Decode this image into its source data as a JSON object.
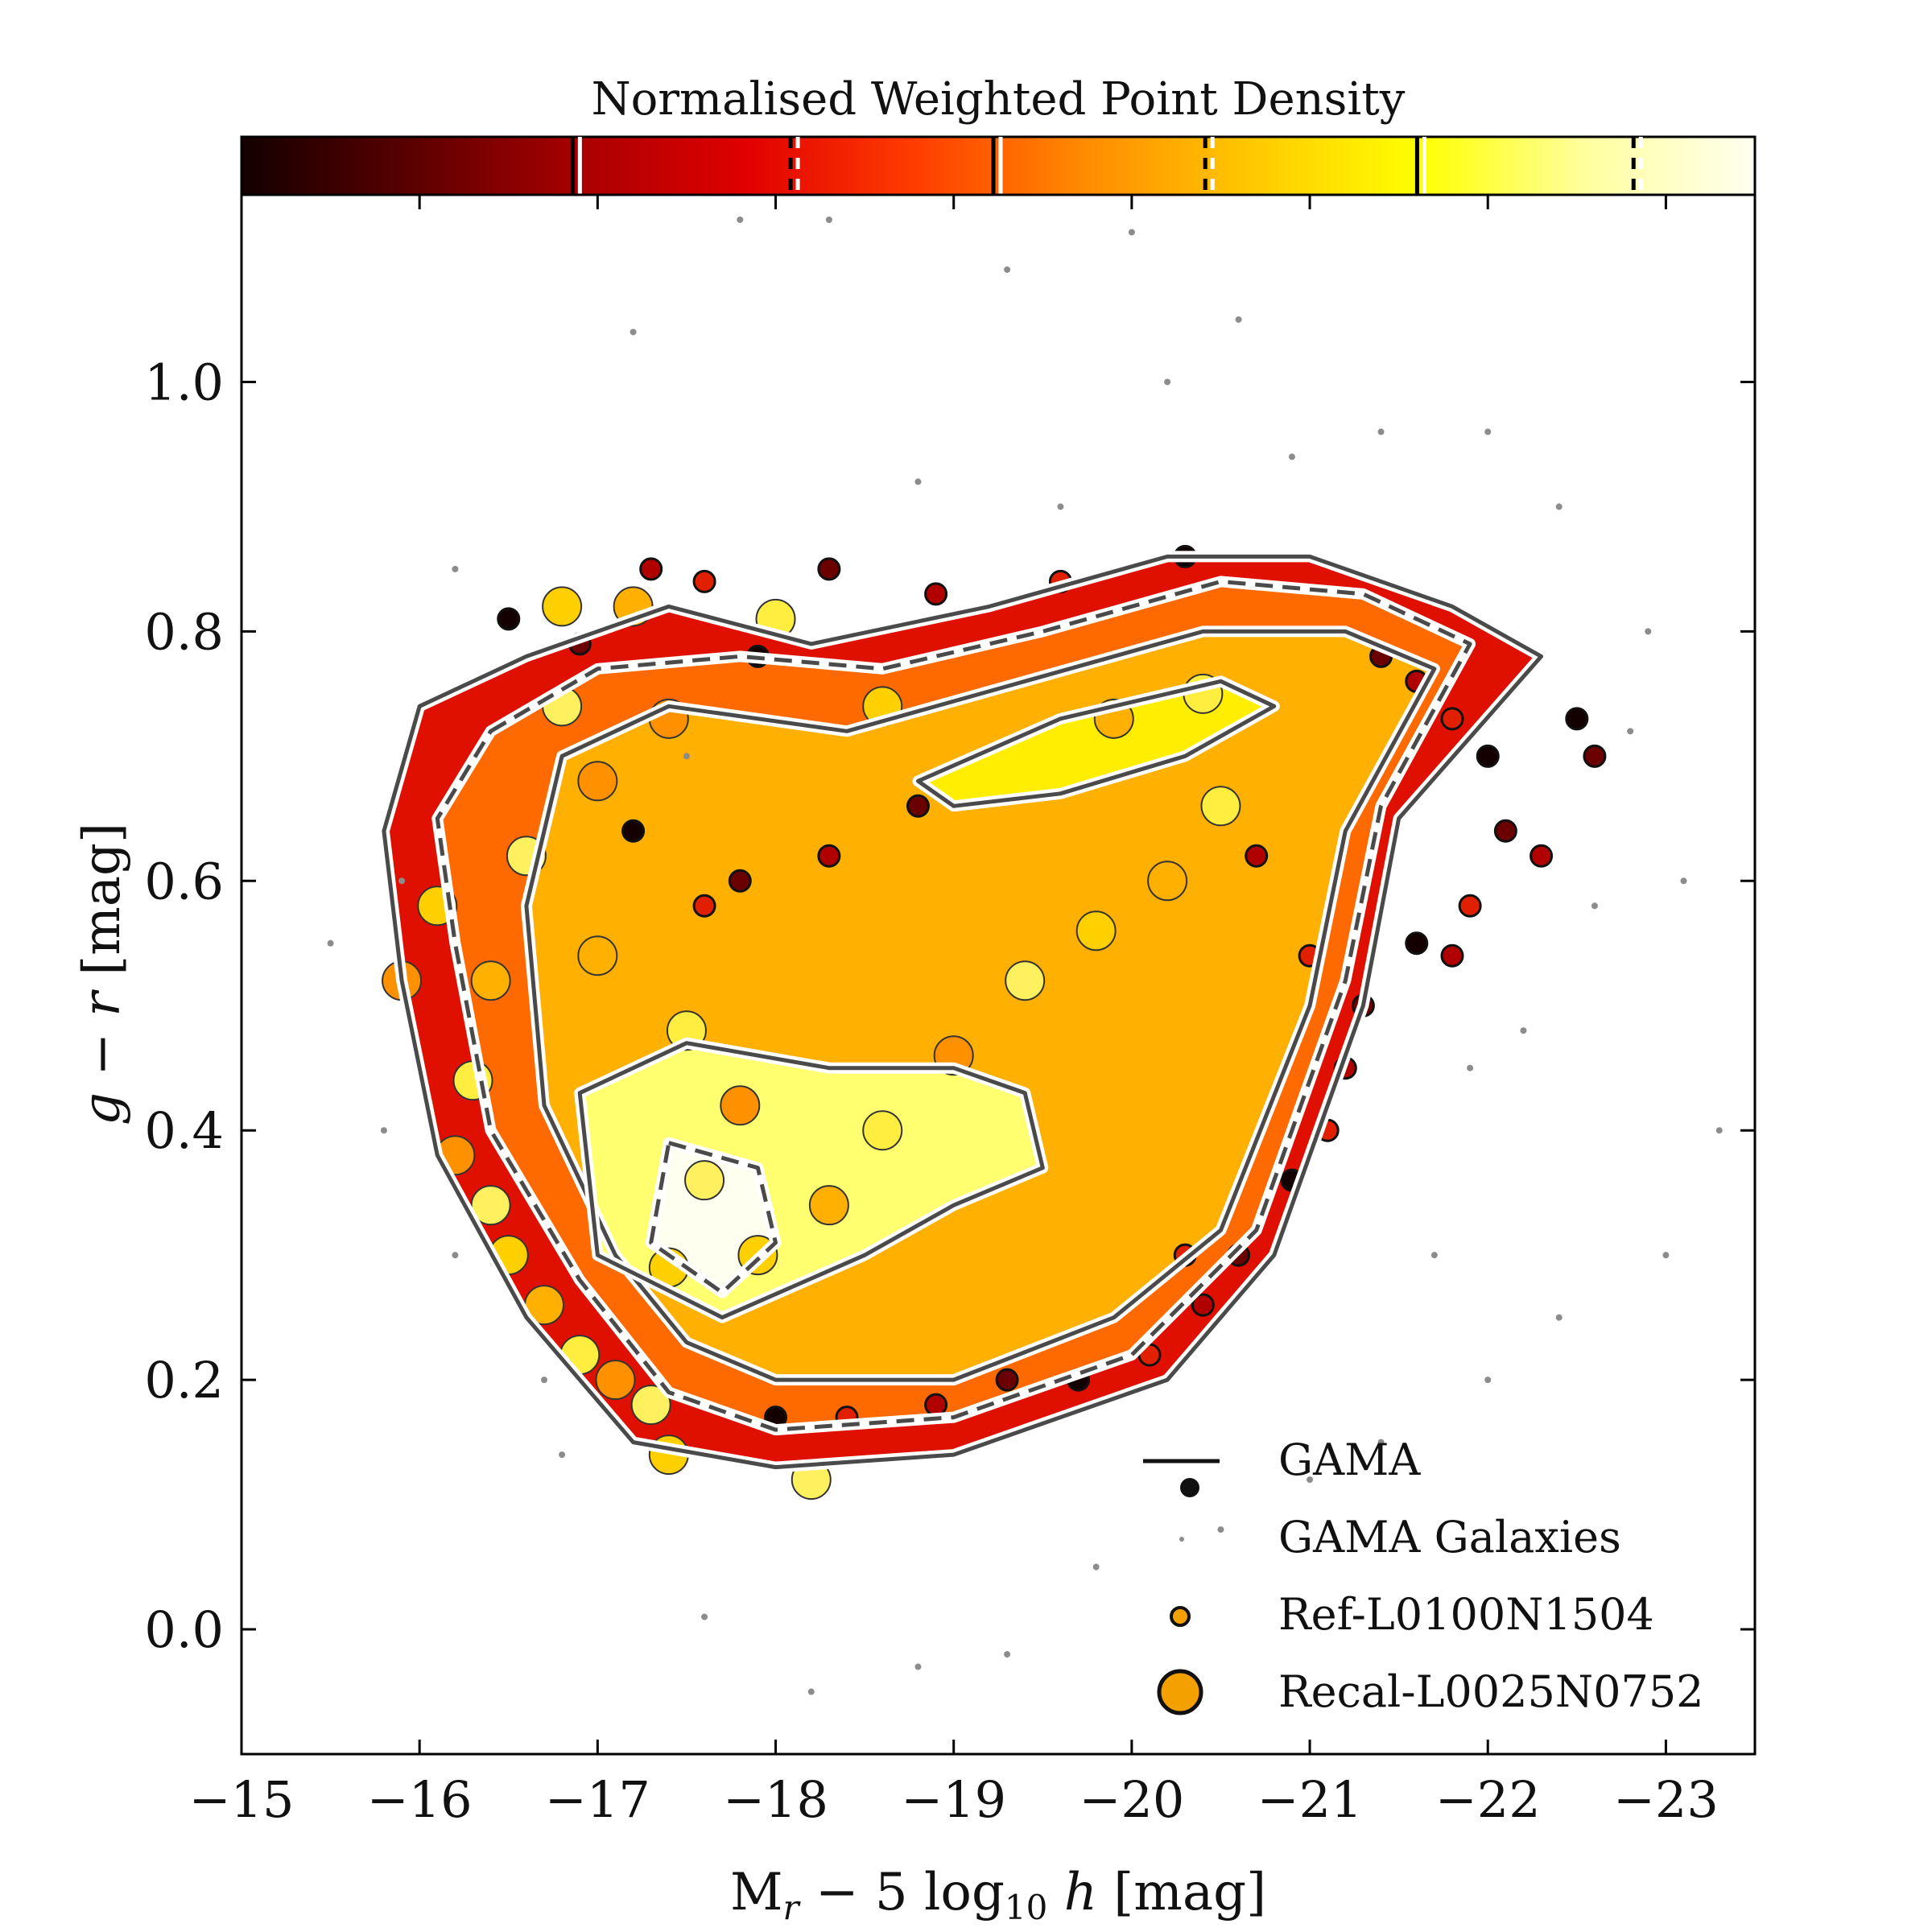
{
  "chart_data": {
    "type": "scatter",
    "title": "Normalised Weighted Point Density",
    "xlabel": "M_r − 5 log10 h [mag]",
    "xlabel_parts": {
      "main": "M",
      "sub_r": "r",
      "mid": " − 5 log",
      "sub_10": "10",
      "h": " h",
      "unit": " [mag]"
    },
    "ylabel": "g − r [mag]",
    "ylabel_parts": {
      "g": "g",
      "minus": " − ",
      "r": "r",
      "unit": " [mag]"
    },
    "xlim": [
      -15,
      -23.5
    ],
    "ylim": [
      -0.1,
      1.15
    ],
    "x_ticks": [
      -15,
      -16,
      -17,
      -18,
      -19,
      -20,
      -21,
      -22,
      -23
    ],
    "x_tick_labels": [
      "−15",
      "−16",
      "−17",
      "−18",
      "−19",
      "−20",
      "−21",
      "−22",
      "−23"
    ],
    "y_ticks": [
      0.0,
      0.2,
      0.4,
      0.6,
      0.8,
      1.0
    ],
    "y_tick_labels": [
      "0.0",
      "0.2",
      "0.4",
      "0.6",
      "0.8",
      "1.0"
    ],
    "colorbar": {
      "colormap": "hot",
      "colors": [
        "#140000",
        "#5a0000",
        "#a80000",
        "#e00000",
        "#ff3c00",
        "#ff8a00",
        "#ffc800",
        "#ffff00",
        "#ffffa0",
        "#fffff0"
      ],
      "segment_boundaries": [
        0.222,
        0.366,
        0.5,
        0.64,
        0.78,
        0.923
      ]
    },
    "series": [
      {
        "name": "GAMA",
        "kind": "contours",
        "color": "#4a4a4a",
        "contours": [
          {
            "style": "solid",
            "points": [
              [
                -16.0,
                0.74
              ],
              [
                -16.6,
                0.78
              ],
              [
                -17.4,
                0.82
              ],
              [
                -18.2,
                0.79
              ],
              [
                -19.2,
                0.82
              ],
              [
                -20.2,
                0.86
              ],
              [
                -21.0,
                0.86
              ],
              [
                -21.8,
                0.82
              ],
              [
                -22.3,
                0.78
              ],
              [
                -21.5,
                0.65
              ],
              [
                -21.3,
                0.5
              ],
              [
                -20.8,
                0.3
              ],
              [
                -20.2,
                0.2
              ],
              [
                -19.0,
                0.14
              ],
              [
                -18.0,
                0.13
              ],
              [
                -17.2,
                0.15
              ],
              [
                -16.6,
                0.25
              ],
              [
                -16.1,
                0.38
              ],
              [
                -15.9,
                0.52
              ],
              [
                -15.8,
                0.64
              ]
            ]
          },
          {
            "style": "dashed",
            "points": [
              [
                -16.4,
                0.72
              ],
              [
                -17.0,
                0.77
              ],
              [
                -17.8,
                0.78
              ],
              [
                -18.6,
                0.77
              ],
              [
                -19.5,
                0.8
              ],
              [
                -20.5,
                0.84
              ],
              [
                -21.3,
                0.83
              ],
              [
                -21.9,
                0.79
              ],
              [
                -21.4,
                0.66
              ],
              [
                -21.2,
                0.52
              ],
              [
                -20.7,
                0.32
              ],
              [
                -20.0,
                0.22
              ],
              [
                -19.0,
                0.17
              ],
              [
                -18.0,
                0.16
              ],
              [
                -17.4,
                0.19
              ],
              [
                -16.9,
                0.28
              ],
              [
                -16.4,
                0.4
              ],
              [
                -16.2,
                0.55
              ],
              [
                -16.1,
                0.65
              ]
            ]
          },
          {
            "style": "solid",
            "points": [
              [
                -16.8,
                0.7
              ],
              [
                -17.4,
                0.74
              ],
              [
                -18.4,
                0.72
              ],
              [
                -19.4,
                0.76
              ],
              [
                -20.4,
                0.8
              ],
              [
                -21.2,
                0.8
              ],
              [
                -21.7,
                0.77
              ],
              [
                -21.2,
                0.64
              ],
              [
                -21.0,
                0.5
              ],
              [
                -20.5,
                0.32
              ],
              [
                -19.9,
                0.25
              ],
              [
                -19.0,
                0.2
              ],
              [
                -18.0,
                0.2
              ],
              [
                -17.5,
                0.23
              ],
              [
                -17.1,
                0.3
              ],
              [
                -16.7,
                0.42
              ],
              [
                -16.6,
                0.58
              ]
            ]
          },
          {
            "style": "solid",
            "points": [
              [
                -18.8,
                0.68
              ],
              [
                -19.6,
                0.73
              ],
              [
                -20.5,
                0.76
              ],
              [
                -20.8,
                0.74
              ],
              [
                -20.3,
                0.7
              ],
              [
                -19.6,
                0.67
              ],
              [
                -19.0,
                0.66
              ]
            ]
          },
          {
            "style": "solid",
            "points": [
              [
                -16.9,
                0.43
              ],
              [
                -17.5,
                0.47
              ],
              [
                -18.3,
                0.45
              ],
              [
                -19.0,
                0.45
              ],
              [
                -19.4,
                0.43
              ],
              [
                -19.5,
                0.37
              ],
              [
                -19.0,
                0.34
              ],
              [
                -18.5,
                0.3
              ],
              [
                -17.7,
                0.25
              ],
              [
                -17.0,
                0.3
              ]
            ]
          },
          {
            "style": "dashed",
            "points": [
              [
                -17.4,
                0.39
              ],
              [
                -17.9,
                0.37
              ],
              [
                -18.0,
                0.31
              ],
              [
                -17.7,
                0.27
              ],
              [
                -17.3,
                0.31
              ]
            ]
          }
        ]
      },
      {
        "name": "GAMA Galaxies",
        "kind": "points",
        "color": "#8c8c8c",
        "points": [
          [
            -15.5,
            0.55
          ],
          [
            -15.9,
            0.6
          ],
          [
            -16.2,
            0.85
          ],
          [
            -17.2,
            1.04
          ],
          [
            -17.8,
            1.13
          ],
          [
            -18.3,
            1.13
          ],
          [
            -19.3,
            1.09
          ],
          [
            -20.0,
            1.12
          ],
          [
            -20.2,
            1.0
          ],
          [
            -20.6,
            1.05
          ],
          [
            -21.4,
            0.96
          ],
          [
            -22.0,
            0.96
          ],
          [
            -22.4,
            0.9
          ],
          [
            -22.9,
            0.8
          ],
          [
            -23.1,
            0.6
          ],
          [
            -23.3,
            0.4
          ],
          [
            -23.0,
            0.3
          ],
          [
            -22.4,
            0.25
          ],
          [
            -22.0,
            0.2
          ],
          [
            -21.4,
            0.15
          ],
          [
            -21.0,
            0.12
          ],
          [
            -20.5,
            0.08
          ],
          [
            -19.8,
            0.05
          ],
          [
            -19.3,
            -0.02
          ],
          [
            -18.8,
            -0.03
          ],
          [
            -18.2,
            -0.05
          ],
          [
            -17.6,
            0.01
          ],
          [
            -16.8,
            0.14
          ],
          [
            -16.2,
            0.3
          ],
          [
            -15.8,
            0.4
          ],
          [
            -22.6,
            0.58
          ],
          [
            -22.2,
            0.48
          ],
          [
            -22.8,
            0.72
          ],
          [
            -19.6,
            0.9
          ],
          [
            -18.8,
            0.92
          ],
          [
            -17.5,
            0.7
          ],
          [
            -16.7,
            0.2
          ],
          [
            -21.7,
            0.3
          ],
          [
            -20.9,
            0.94
          ],
          [
            -21.9,
            0.45
          ]
        ]
      },
      {
        "name": "Ref-L0100N1504",
        "kind": "points",
        "color": "#e24a00",
        "points": [
          [
            -16.5,
            0.81
          ],
          [
            -16.9,
            0.79
          ],
          [
            -17.3,
            0.85
          ],
          [
            -17.6,
            0.84
          ],
          [
            -17.9,
            0.78
          ],
          [
            -18.3,
            0.85
          ],
          [
            -18.9,
            0.83
          ],
          [
            -19.6,
            0.84
          ],
          [
            -20.3,
            0.86
          ],
          [
            -21.4,
            0.78
          ],
          [
            -21.6,
            0.76
          ],
          [
            -21.8,
            0.73
          ],
          [
            -22.0,
            0.7
          ],
          [
            -22.1,
            0.64
          ],
          [
            -22.3,
            0.62
          ],
          [
            -21.9,
            0.58
          ],
          [
            -21.6,
            0.55
          ],
          [
            -21.3,
            0.5
          ],
          [
            -21.2,
            0.45
          ],
          [
            -21.1,
            0.4
          ],
          [
            -20.9,
            0.36
          ],
          [
            -20.6,
            0.3
          ],
          [
            -20.4,
            0.26
          ],
          [
            -20.1,
            0.22
          ],
          [
            -19.7,
            0.2
          ],
          [
            -19.3,
            0.2
          ],
          [
            -18.9,
            0.18
          ],
          [
            -18.4,
            0.17
          ],
          [
            -18.0,
            0.17
          ],
          [
            -17.8,
            0.6
          ],
          [
            -18.3,
            0.62
          ],
          [
            -17.6,
            0.58
          ],
          [
            -17.2,
            0.64
          ],
          [
            -18.8,
            0.66
          ],
          [
            -20.7,
            0.62
          ],
          [
            -21.0,
            0.54
          ],
          [
            -22.5,
            0.73
          ],
          [
            -22.6,
            0.7
          ],
          [
            -21.8,
            0.54
          ],
          [
            -20.3,
            0.3
          ]
        ]
      },
      {
        "name": "Recal-L0025N0752",
        "kind": "points",
        "color": "#ffa500",
        "points": [
          [
            -16.8,
            0.82
          ],
          [
            -17.2,
            0.82
          ],
          [
            -18.0,
            0.81
          ],
          [
            -15.9,
            0.52
          ],
          [
            -16.6,
            0.62
          ],
          [
            -16.1,
            0.58
          ],
          [
            -16.4,
            0.52
          ],
          [
            -16.3,
            0.44
          ],
          [
            -16.2,
            0.38
          ],
          [
            -16.4,
            0.34
          ],
          [
            -16.5,
            0.3
          ],
          [
            -16.7,
            0.26
          ],
          [
            -16.9,
            0.22
          ],
          [
            -17.1,
            0.2
          ],
          [
            -17.3,
            0.18
          ],
          [
            -17.4,
            0.14
          ],
          [
            -17.0,
            0.54
          ],
          [
            -17.5,
            0.48
          ],
          [
            -17.8,
            0.42
          ],
          [
            -17.6,
            0.36
          ],
          [
            -17.9,
            0.3
          ],
          [
            -18.3,
            0.34
          ],
          [
            -18.6,
            0.4
          ],
          [
            -19.0,
            0.46
          ],
          [
            -19.4,
            0.52
          ],
          [
            -19.8,
            0.56
          ],
          [
            -20.2,
            0.6
          ],
          [
            -20.5,
            0.66
          ],
          [
            -17.4,
            0.73
          ],
          [
            -16.8,
            0.74
          ],
          [
            -18.6,
            0.74
          ],
          [
            -19.9,
            0.73
          ],
          [
            -20.4,
            0.75
          ],
          [
            -17.0,
            0.68
          ],
          [
            -18.2,
            0.12
          ],
          [
            -17.4,
            0.29
          ]
        ]
      }
    ],
    "legend": {
      "position": "lower right",
      "entries": [
        "GAMA",
        "GAMA Galaxies",
        "Ref-L0100N1504",
        "Recal-L0025N0752"
      ]
    }
  }
}
